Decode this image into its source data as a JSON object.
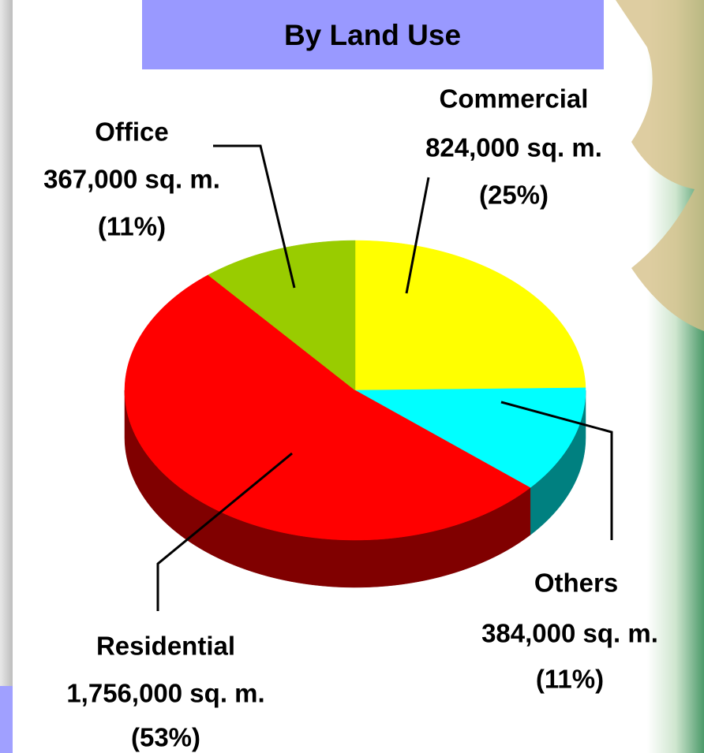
{
  "chart_data": {
    "type": "pie",
    "title": "By Land Use",
    "categories": [
      "Commercial",
      "Others",
      "Residential",
      "Office"
    ],
    "values": [
      824000,
      384000,
      1756000,
      367000
    ],
    "value_labels": [
      "824,000 sq. m.",
      "384,000 sq. m.",
      "1,756,000 sq. m.",
      "367,000 sq. m."
    ],
    "percentages": [
      25,
      11,
      53,
      11
    ],
    "percentage_labels": [
      "(25%)",
      "(11%)",
      "(53%)",
      "(11%)"
    ],
    "colors": [
      "#ffff00",
      "#00ffff",
      "#ff0000",
      "#99cc00"
    ],
    "side_colors": [
      "#808000",
      "#008080",
      "#800000",
      "#4d6600"
    ]
  }
}
